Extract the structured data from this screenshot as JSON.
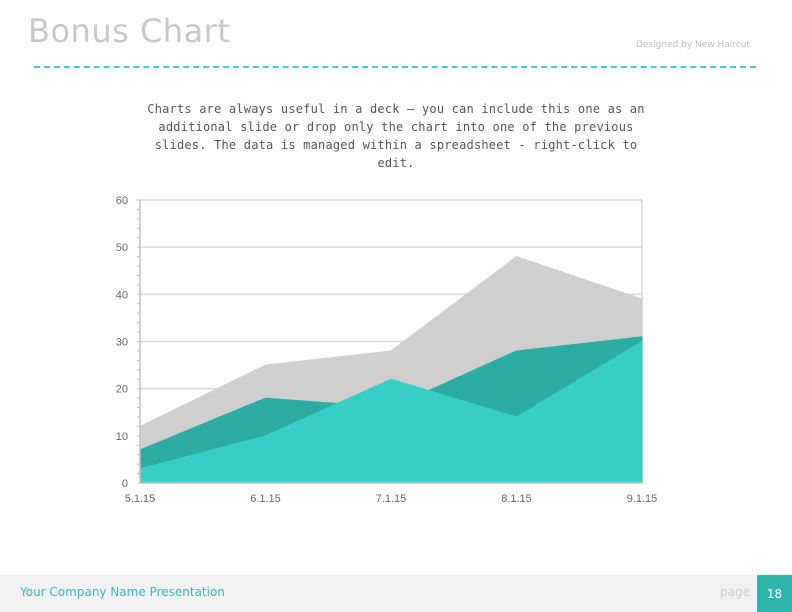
{
  "slide": {
    "title": "Bonus Chart",
    "credit": "Designed by New Haircut",
    "intro": "Charts are always useful in a deck — you can include this one as an additional slide or drop only the chart into one of the previous slides. The data is managed within a spreadsheet - right-click to edit."
  },
  "footer": {
    "company": "Your Company Name Presentation",
    "page_label": "page",
    "page_number": "18"
  },
  "colors": {
    "accent": "#35cfc8",
    "series_back": "#cfcfcf",
    "series_mid": "#2bada5",
    "series_front": "#35cfc8"
  },
  "chart_data": {
    "type": "area",
    "categories": [
      "5.1.15",
      "6.1.15",
      "7.1.15",
      "8.1.15",
      "9.1.15"
    ],
    "ylim": [
      0,
      60
    ],
    "yticks": [
      0,
      10,
      20,
      30,
      40,
      50,
      60
    ],
    "grid": true,
    "legend": "none",
    "series": [
      {
        "values": [
          12,
          25,
          28,
          48,
          39
        ],
        "color": "#cfcfcf"
      },
      {
        "values": [
          7,
          18,
          16,
          28,
          31
        ],
        "color": "#2bada5"
      },
      {
        "values": [
          3,
          10,
          22,
          14,
          30
        ],
        "color": "#35cfc8"
      }
    ]
  }
}
